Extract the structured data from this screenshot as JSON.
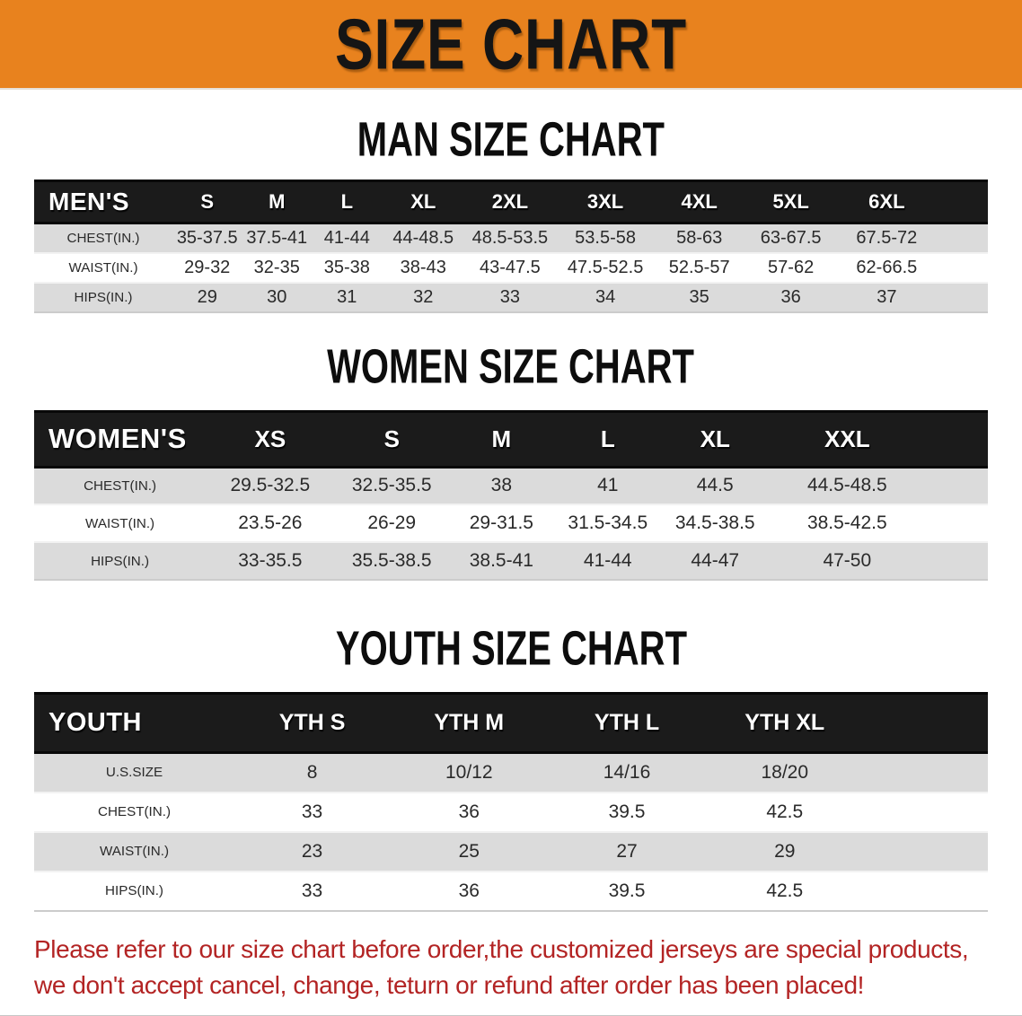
{
  "banner": {
    "title": "SIZE CHART",
    "bg_color": "#E8821E",
    "text_color": "#151515"
  },
  "sections": [
    {
      "heading": "MAN SIZE CHART",
      "group_label": "MEN'S",
      "sizes": [
        "S",
        "M",
        "L",
        "XL",
        "2XL",
        "3XL",
        "4XL",
        "5XL",
        "6XL"
      ],
      "rows": [
        {
          "label": "CHEST(IN.)",
          "values": [
            "35-37.5",
            "37.5-41",
            "41-44",
            "44-48.5",
            "48.5-53.5",
            "53.5-58",
            "58-63",
            "63-67.5",
            "67.5-72"
          ]
        },
        {
          "label": "WAIST(IN.)",
          "values": [
            "29-32",
            "32-35",
            "35-38",
            "38-43",
            "43-47.5",
            "47.5-52.5",
            "52.5-57",
            "57-62",
            "62-66.5"
          ]
        },
        {
          "label": "HIPS(IN.)",
          "values": [
            "29",
            "30",
            "31",
            "32",
            "33",
            "34",
            "35",
            "36",
            "37"
          ]
        }
      ]
    },
    {
      "heading": "WOMEN SIZE CHART",
      "group_label": "WOMEN'S",
      "sizes": [
        "XS",
        "S",
        "M",
        "L",
        "XL",
        "XXL"
      ],
      "rows": [
        {
          "label": "CHEST(IN.)",
          "values": [
            "29.5-32.5",
            "32.5-35.5",
            "38",
            "41",
            "44.5",
            "44.5-48.5"
          ]
        },
        {
          "label": "WAIST(IN.)",
          "values": [
            "23.5-26",
            "26-29",
            "29-31.5",
            "31.5-34.5",
            "34.5-38.5",
            "38.5-42.5"
          ]
        },
        {
          "label": "HIPS(IN.)",
          "values": [
            "33-35.5",
            "35.5-38.5",
            "38.5-41",
            "41-44",
            "44-47",
            "47-50"
          ]
        }
      ]
    },
    {
      "heading": "YOUTH SIZE CHART",
      "group_label": "YOUTH",
      "sizes": [
        "YTH S",
        "YTH M",
        "YTH L",
        "YTH XL"
      ],
      "rows": [
        {
          "label": "U.S.SIZE",
          "values": [
            "8",
            "10/12",
            "14/16",
            "18/20"
          ]
        },
        {
          "label": "CHEST(IN.)",
          "values": [
            "33",
            "36",
            "39.5",
            "42.5"
          ]
        },
        {
          "label": "WAIST(IN.)",
          "values": [
            "23",
            "25",
            "27",
            "29"
          ]
        },
        {
          "label": "HIPS(IN.)",
          "values": [
            "33",
            "36",
            "39.5",
            "42.5"
          ]
        }
      ]
    }
  ],
  "table_colors": {
    "header_bg": "#1b1b1b",
    "header_text": "#ffffff",
    "row_gray": "#dbdbdb",
    "row_white": "#ffffff"
  },
  "footer": {
    "line1": "Please refer to our size chart before order,the customized jerseys are special products,",
    "line2": "we don't accept cancel, change, teturn or refund after order has been placed!",
    "text_color": "#B32424"
  }
}
